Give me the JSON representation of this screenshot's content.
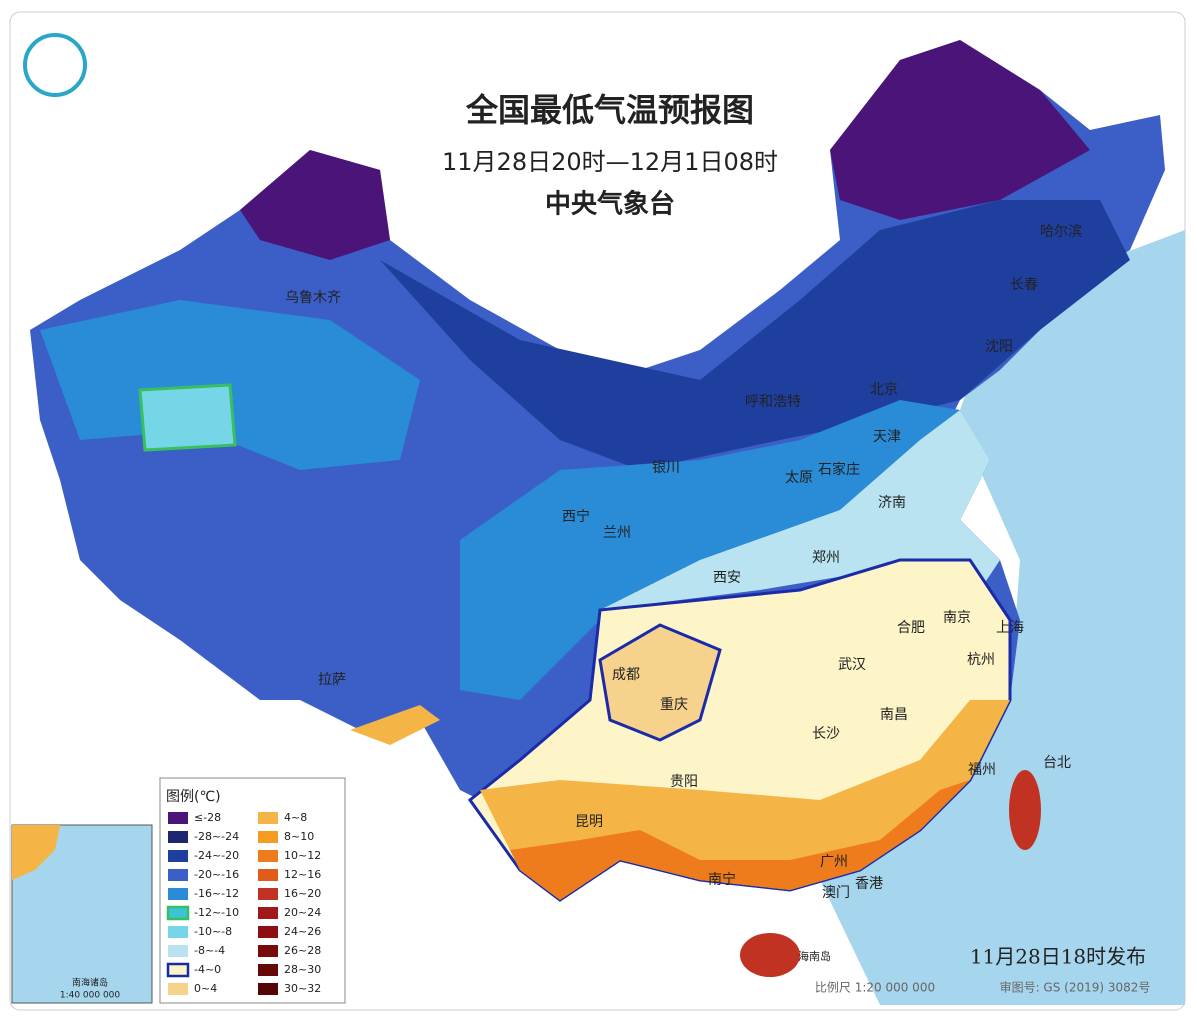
{
  "header": {
    "title": "全国最低气温预报图",
    "period": "11月28日20时—12月1日08时",
    "agency": "中央气象台"
  },
  "cities": [
    "哈尔滨",
    "长春",
    "沈阳",
    "北京",
    "天津",
    "呼和浩特",
    "乌鲁木齐",
    "银川",
    "石家庄",
    "太原",
    "济南",
    "西宁",
    "兰州",
    "郑州",
    "西安",
    "南京",
    "合肥",
    "上海",
    "武汉",
    "杭州",
    "成都",
    "重庆",
    "拉萨",
    "长沙",
    "南昌",
    "贵阳",
    "福州",
    "台北",
    "昆明",
    "南宁",
    "广州",
    "澳门",
    "香港",
    "海南岛"
  ],
  "legend": {
    "title": "图例(℃)",
    "items": [
      {
        "label": "≤-28",
        "color": "#4a1478"
      },
      {
        "label": "-28~-24",
        "color": "#1c2770"
      },
      {
        "label": "-24~-20",
        "color": "#1f3f9e"
      },
      {
        "label": "-20~-16",
        "color": "#3b5fc6"
      },
      {
        "label": "-16~-12",
        "color": "#2a8bd6"
      },
      {
        "label": "-12~-10",
        "color": "#3cc4d6",
        "outline": "#38c060"
      },
      {
        "label": "-10~-8",
        "color": "#74d6e6"
      },
      {
        "label": "-8~-4",
        "color": "#b9e3f0"
      },
      {
        "label": "-4~0",
        "color": "#fdf4c8",
        "outline": "#1b2aa8"
      },
      {
        "label": "0~4",
        "color": "#f7d28c"
      },
      {
        "label": "4~8",
        "color": "#f4b446"
      },
      {
        "label": "8~10",
        "color": "#f59c22"
      },
      {
        "label": "10~12",
        "color": "#ee7c1c"
      },
      {
        "label": "12~16",
        "color": "#e05c18"
      },
      {
        "label": "16~20",
        "color": "#c23222"
      },
      {
        "label": "20~24",
        "color": "#a2181a"
      },
      {
        "label": "24~26",
        "color": "#8c1012"
      },
      {
        "label": "26~28",
        "color": "#780a0c"
      },
      {
        "label": "28~30",
        "color": "#660808"
      },
      {
        "label": "30~32",
        "color": "#560506"
      }
    ]
  },
  "footer": {
    "release": "11月28日18时发布",
    "scale": "比例尺 1:20 000 000",
    "map_number": "审图号: GS (2019) 3082号"
  },
  "inset": {
    "title": "南海诸岛",
    "scale": "1:40 000 000"
  }
}
